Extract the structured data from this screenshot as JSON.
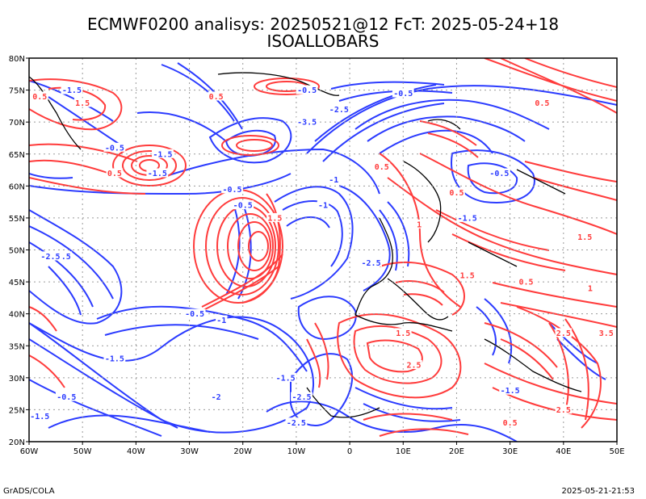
{
  "header": {
    "title": "ECMWF0200 analisys: 20250521@12 FcT: 2025-05-24+18",
    "subtitle": "ISOALLOBARS"
  },
  "footer": {
    "left": "GrADS/COLA",
    "right": "2025-05-21-21:53"
  },
  "map": {
    "lon_range": [
      -60,
      50
    ],
    "lat_range": [
      20,
      80
    ],
    "lon_ticks": [
      "60W",
      "50W",
      "40W",
      "30W",
      "20W",
      "10W",
      "0",
      "10E",
      "20E",
      "30E",
      "40E",
      "50E"
    ],
    "lat_ticks": [
      "80N",
      "75N",
      "70N",
      "65N",
      "60N",
      "55N",
      "50N",
      "45N",
      "40N",
      "35N",
      "30N",
      "25N",
      "20N"
    ],
    "colors": {
      "positive": "#ff3b3b",
      "negative": "#2b3bff",
      "frame": "#000000",
      "grid": "#9a9a9a"
    },
    "contour_labels": [
      {
        "text": "1.5",
        "lon": -14,
        "lat": 55,
        "sign": "pos"
      },
      {
        "text": "-0.5",
        "lon": -22,
        "lat": 59.5,
        "sign": "neg"
      },
      {
        "text": "-1.5",
        "lon": -36,
        "lat": 62,
        "sign": "neg"
      },
      {
        "text": "0.5",
        "lon": -44,
        "lat": 62,
        "sign": "pos"
      },
      {
        "text": "-3.5",
        "lon": -8,
        "lat": 70,
        "sign": "neg"
      },
      {
        "text": "-2.5",
        "lon": -2,
        "lat": 72,
        "sign": "neg"
      },
      {
        "text": "-0.5",
        "lon": 10,
        "lat": 74.5,
        "sign": "neg"
      },
      {
        "text": "0.5",
        "lon": 36,
        "lat": 73,
        "sign": "pos"
      },
      {
        "text": "-0.5",
        "lon": -8,
        "lat": 75,
        "sign": "neg"
      },
      {
        "text": "-1.5",
        "lon": -54,
        "lat": 49,
        "sign": "neg"
      },
      {
        "text": "-2.5",
        "lon": -56,
        "lat": 49,
        "sign": "neg"
      },
      {
        "text": "0",
        "lon": -30,
        "lat": 40,
        "sign": "pos"
      },
      {
        "text": "-0.5",
        "lon": -29,
        "lat": 40,
        "sign": "neg"
      },
      {
        "text": "-2",
        "lon": -25,
        "lat": 27,
        "sign": "neg"
      },
      {
        "text": "-1",
        "lon": -24,
        "lat": 39,
        "sign": "neg"
      },
      {
        "text": "-1.5",
        "lon": -58,
        "lat": 24,
        "sign": "neg"
      },
      {
        "text": "-0.5",
        "lon": -53,
        "lat": 27,
        "sign": "neg"
      },
      {
        "text": "1.5",
        "lon": 10,
        "lat": 37,
        "sign": "pos"
      },
      {
        "text": "2.5",
        "lon": 12,
        "lat": 32,
        "sign": "pos"
      },
      {
        "text": "-1.5",
        "lon": -12,
        "lat": 30,
        "sign": "neg"
      },
      {
        "text": "-2.5",
        "lon": -9,
        "lat": 27,
        "sign": "neg"
      },
      {
        "text": "0.5",
        "lon": 33,
        "lat": 45,
        "sign": "pos"
      },
      {
        "text": "1.5",
        "lon": 22,
        "lat": 46,
        "sign": "pos"
      },
      {
        "text": "2.5",
        "lon": 40,
        "lat": 37,
        "sign": "pos"
      },
      {
        "text": "3.5",
        "lon": 48,
        "lat": 37,
        "sign": "pos"
      },
      {
        "text": "1.5",
        "lon": 44,
        "lat": 52,
        "sign": "pos"
      },
      {
        "text": "-0.5",
        "lon": 28,
        "lat": 62,
        "sign": "neg"
      },
      {
        "text": "-1.5",
        "lon": 22,
        "lat": 55,
        "sign": "neg"
      },
      {
        "text": "0.5",
        "lon": 20,
        "lat": 59,
        "sign": "pos"
      },
      {
        "text": "1",
        "lon": 45,
        "lat": 44,
        "sign": "pos"
      },
      {
        "text": "-1",
        "lon": -5,
        "lat": 57,
        "sign": "neg"
      },
      {
        "text": "-1.5",
        "lon": -44,
        "lat": 33,
        "sign": "neg"
      },
      {
        "text": "-2.5",
        "lon": -10,
        "lat": 23,
        "sign": "neg"
      },
      {
        "text": "0.5",
        "lon": -25,
        "lat": 74,
        "sign": "pos"
      },
      {
        "text": "-0.5",
        "lon": -44,
        "lat": 66,
        "sign": "neg"
      },
      {
        "text": "1.5",
        "lon": -50,
        "lat": 73,
        "sign": "pos"
      },
      {
        "text": "0.5",
        "lon": -58,
        "lat": 74,
        "sign": "pos"
      },
      {
        "text": "-1.5",
        "lon": -52,
        "lat": 75,
        "sign": "neg"
      },
      {
        "text": "-1",
        "lon": -3,
        "lat": 61,
        "sign": "neg"
      },
      {
        "text": "-2.5",
        "lon": 4,
        "lat": 48,
        "sign": "neg"
      },
      {
        "text": "0.5",
        "lon": 6,
        "lat": 63,
        "sign": "pos"
      },
      {
        "text": "1",
        "lon": 13,
        "lat": 54,
        "sign": "pos"
      },
      {
        "text": "-0.5",
        "lon": -20,
        "lat": 57,
        "sign": "neg"
      },
      {
        "text": "-1.5",
        "lon": -35,
        "lat": 65,
        "sign": "neg"
      },
      {
        "text": "2.5",
        "lon": 40,
        "lat": 25,
        "sign": "pos"
      },
      {
        "text": "-1.5",
        "lon": 30,
        "lat": 28,
        "sign": "neg"
      },
      {
        "text": "0.5",
        "lon": 30,
        "lat": 23,
        "sign": "pos"
      }
    ]
  }
}
